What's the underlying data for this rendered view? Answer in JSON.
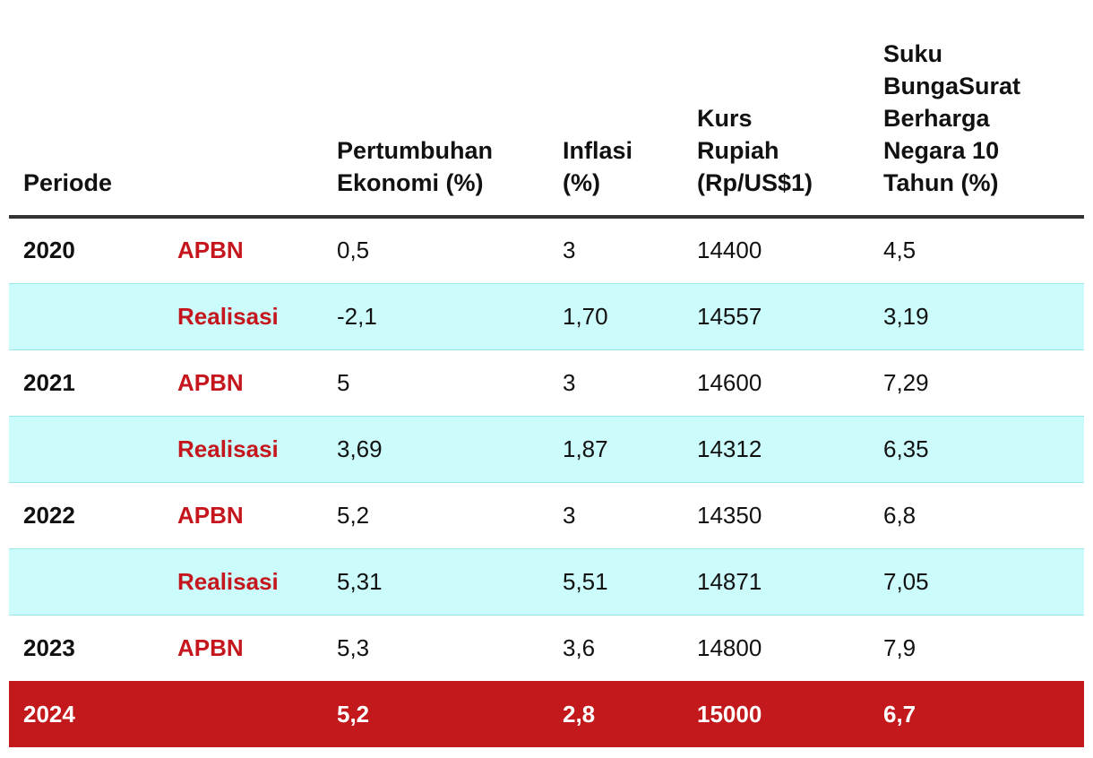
{
  "header": {
    "periode": "Periode",
    "type": "",
    "pertumbuhan_line1": "Pertumbuhan",
    "pertumbuhan_line2": "Ekonomi (%)",
    "inflasi_line1": "Inflasi",
    "inflasi_line2": "(%)",
    "kurs_line1": "Kurs",
    "kurs_line2": "Rupiah",
    "kurs_line3": "(Rp/US$1)",
    "sbn_line1": "Suku",
    "sbn_line2": "BungaSurat",
    "sbn_line3": "Berharga",
    "sbn_line4": "Negara 10",
    "sbn_line5": "Tahun (%)"
  },
  "rows": [
    {
      "year": "2020",
      "type": "APBN",
      "pertumbuhan": "0,5",
      "inflasi": "3",
      "kurs": "14400",
      "sbn": "4,5"
    },
    {
      "year": "",
      "type": "Realisasi",
      "pertumbuhan": "-2,1",
      "inflasi": "1,70",
      "kurs": "14557",
      "sbn": "3,19"
    },
    {
      "year": "2021",
      "type": "APBN",
      "pertumbuhan": "5",
      "inflasi": "3",
      "kurs": "14600",
      "sbn": "7,29"
    },
    {
      "year": "",
      "type": "Realisasi",
      "pertumbuhan": "3,69",
      "inflasi": "1,87",
      "kurs": "14312",
      "sbn": "6,35"
    },
    {
      "year": "2022",
      "type": "APBN",
      "pertumbuhan": "5,2",
      "inflasi": "3",
      "kurs": "14350",
      "sbn": "6,8"
    },
    {
      "year": "",
      "type": "Realisasi",
      "pertumbuhan": "5,31",
      "inflasi": "5,51",
      "kurs": "14871",
      "sbn": "7,05"
    },
    {
      "year": "2023",
      "type": "APBN",
      "pertumbuhan": "5,3",
      "inflasi": "3,6",
      "kurs": "14800",
      "sbn": "7,9"
    },
    {
      "year": "2024",
      "type": "",
      "pertumbuhan": "5,2",
      "inflasi": "2,8",
      "kurs": "15000",
      "sbn": "6,7"
    }
  ],
  "colors": {
    "accent_red": "#c4191c",
    "type_label_red": "#c4161c",
    "realisasi_row_bg": "#ccfbfb",
    "header_rule": "#333333"
  }
}
